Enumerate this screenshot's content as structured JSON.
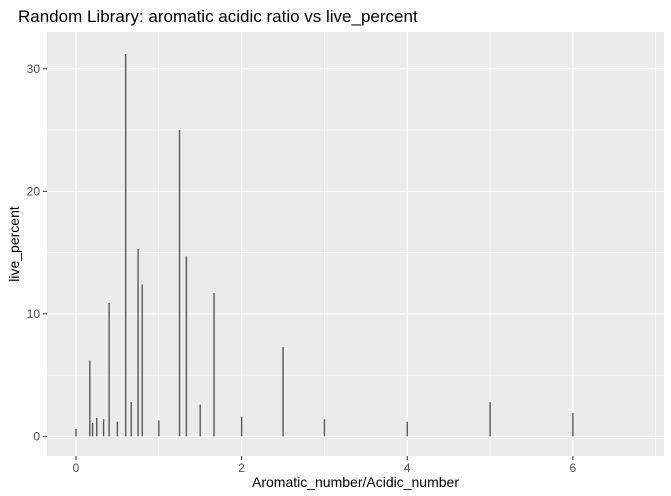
{
  "chart_data": {
    "type": "bar",
    "title": "Random Library: aromatic acidic ratio vs live_percent",
    "xlabel": "Aromatic_number/Acidic_number",
    "ylabel": "live_percent",
    "xlim": [
      -0.35,
      7.1
    ],
    "ylim": [
      -1.6,
      33.0
    ],
    "x_ticks": [
      0,
      2,
      4,
      6
    ],
    "x_ticks_minor": [
      1,
      3,
      5,
      7
    ],
    "y_ticks": [
      0,
      10,
      20,
      30
    ],
    "y_ticks_minor": [
      5,
      15,
      25
    ],
    "grid": true,
    "panel_color": "#ebebeb",
    "grid_color": "#ffffff",
    "bar_color": "#595959",
    "bars": [
      {
        "x": 0.0,
        "y": 0.6
      },
      {
        "x": 0.167,
        "y": 6.2
      },
      {
        "x": 0.2,
        "y": 1.1
      },
      {
        "x": 0.25,
        "y": 1.5
      },
      {
        "x": 0.333,
        "y": 1.4
      },
      {
        "x": 0.4,
        "y": 10.9
      },
      {
        "x": 0.5,
        "y": 1.2
      },
      {
        "x": 0.6,
        "y": 31.2
      },
      {
        "x": 0.667,
        "y": 2.8
      },
      {
        "x": 0.75,
        "y": 15.3
      },
      {
        "x": 0.8,
        "y": 12.4
      },
      {
        "x": 1.0,
        "y": 1.3
      },
      {
        "x": 1.25,
        "y": 25.0
      },
      {
        "x": 1.333,
        "y": 14.7
      },
      {
        "x": 1.5,
        "y": 2.6
      },
      {
        "x": 1.667,
        "y": 11.7
      },
      {
        "x": 2.0,
        "y": 1.6
      },
      {
        "x": 2.5,
        "y": 7.3
      },
      {
        "x": 3.0,
        "y": 1.4
      },
      {
        "x": 4.0,
        "y": 1.2
      },
      {
        "x": 5.0,
        "y": 2.8
      },
      {
        "x": 6.0,
        "y": 1.9
      }
    ]
  }
}
